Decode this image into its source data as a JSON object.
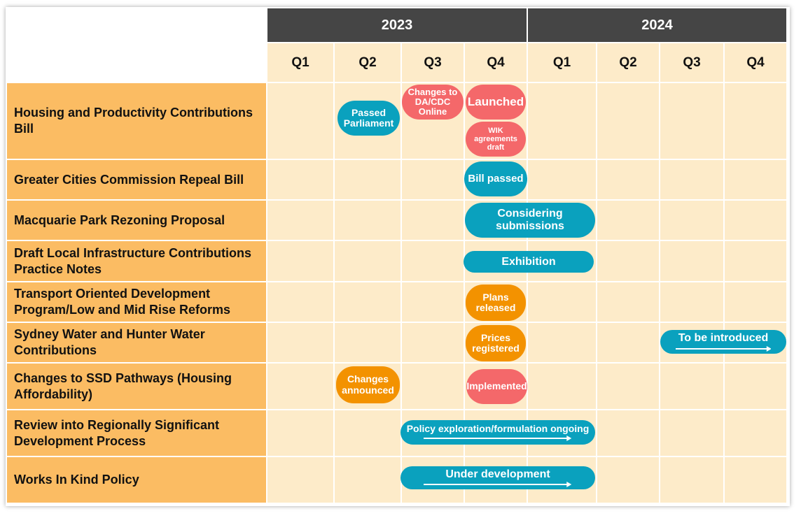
{
  "header": {
    "years": [
      "2023",
      "2024"
    ],
    "quarters": [
      "Q1",
      "Q2",
      "Q3",
      "Q4",
      "Q1",
      "Q2",
      "Q3",
      "Q4"
    ]
  },
  "rows": [
    {
      "label": "Housing and Productivity Contributions Bill",
      "milestones": [
        "Passed Parliament",
        "Changes to DA/CDC Online",
        "Launched",
        "WIK agreements draft"
      ]
    },
    {
      "label": "Greater Cities Commission Repeal Bill",
      "milestones": [
        "Bill passed"
      ]
    },
    {
      "label": "Macquarie Park Rezoning Proposal",
      "milestones": [
        "Considering submissions"
      ]
    },
    {
      "label": "Draft Local Infrastructure Contributions Practice Notes",
      "milestones": [
        "Exhibition"
      ]
    },
    {
      "label": "Transport Oriented Development Program/Low and Mid Rise Reforms",
      "milestones": [
        "Plans released"
      ]
    },
    {
      "label": "Sydney Water and Hunter Water Contributions",
      "milestones": [
        "Prices registered",
        "To be introduced"
      ]
    },
    {
      "label": "Changes to SSD Pathways (Housing Affordability)",
      "milestones": [
        "Changes announced",
        "Implemented"
      ]
    },
    {
      "label": "Review into Regionally Significant Development Process",
      "milestones": [
        "Policy exploration/formulation ongoing"
      ]
    },
    {
      "label": "Works In Kind Policy",
      "milestones": [
        "Under development"
      ]
    }
  ]
}
